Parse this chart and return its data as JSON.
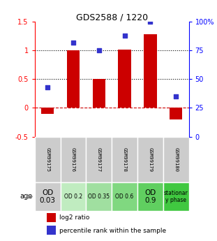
{
  "title": "GDS2588 / 1220",
  "samples": [
    "GSM99175",
    "GSM99176",
    "GSM99177",
    "GSM99178",
    "GSM99179",
    "GSM99180"
  ],
  "log2_ratio": [
    -0.1,
    1.0,
    0.5,
    1.02,
    1.28,
    -0.2
  ],
  "pct_right_vals": [
    43,
    82,
    75,
    88,
    100,
    35
  ],
  "bar_color": "#cc0000",
  "dot_color": "#3333cc",
  "ylim_left": [
    -0.5,
    1.5
  ],
  "ylim_right": [
    0,
    100
  ],
  "left_yticks": [
    -0.5,
    0.0,
    0.5,
    1.0,
    1.5
  ],
  "left_yticklabels": [
    "-0.5",
    "0",
    "0.5",
    "1",
    "1.5"
  ],
  "right_yticks": [
    0,
    25,
    50,
    75,
    100
  ],
  "right_yticklabels": [
    "0",
    "25",
    "50",
    "75",
    "100%"
  ],
  "age_labels": [
    "OD\n0.03",
    "OD 0.2",
    "OD 0.35",
    "OD 0.6",
    "OD\n0.9",
    "stationar\ny phase"
  ],
  "age_bg_colors": [
    "#cccccc",
    "#c0ecc0",
    "#a0dfa0",
    "#80d880",
    "#60cf60",
    "#40c840"
  ],
  "gsm_bg_color": "#cccccc",
  "bar_width": 0.5
}
